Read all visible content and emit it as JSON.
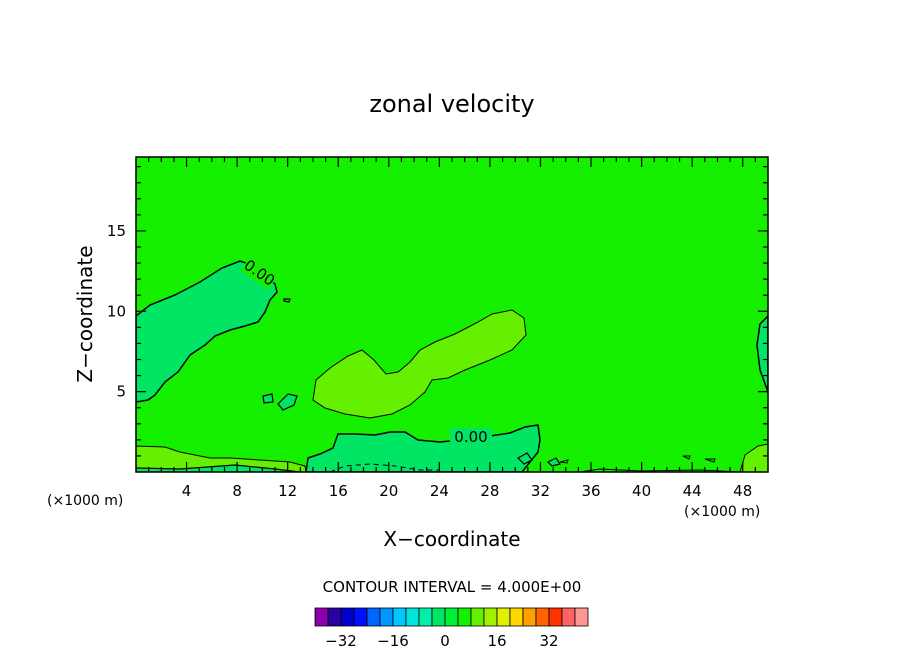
{
  "chart_data": {
    "type": "heatmap",
    "title": "zonal velocity",
    "xlabel": "X−coordinate",
    "ylabel": "Z−coordinate",
    "x_unit_label": "(×1000 m)",
    "x_unit_label_right": "(×1000 m)",
    "xlim": [
      0,
      50
    ],
    "ylim": [
      0,
      19.6
    ],
    "xticks": [
      4,
      8,
      12,
      16,
      20,
      24,
      28,
      32,
      36,
      40,
      44,
      48
    ],
    "yticks": [
      5,
      10,
      15
    ],
    "contour_interval_text": "CONTOUR INTERVAL = 4.000E+00",
    "contour_labels": [
      "0.00",
      "0.00"
    ],
    "colorbar": {
      "ticks": [
        "−32",
        "−16",
        "0",
        "16",
        "32"
      ],
      "colors": [
        "#8a00b0",
        "#2a00a0",
        "#0000c8",
        "#0010ff",
        "#0064ff",
        "#0096ff",
        "#00c8ff",
        "#00e6dc",
        "#00f0aa",
        "#00e664",
        "#00f036",
        "#14f000",
        "#64f000",
        "#a0f000",
        "#dcf000",
        "#ffd700",
        "#ffa000",
        "#ff6400",
        "#ff3200",
        "#ff6464",
        "#ff9696"
      ]
    },
    "regions": {
      "background": "#14f000",
      "weak_negative": "#00e664",
      "weak_positive": "#64f000"
    }
  }
}
